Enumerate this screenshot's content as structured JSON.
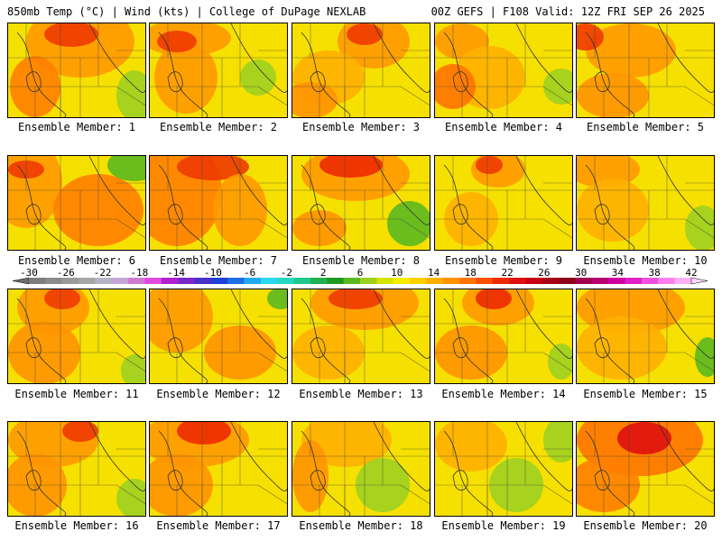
{
  "header": {
    "title_left": "850mb Temp (°C) | Wind (kts) | College of DuPage NEXLAB",
    "title_right": "00Z GEFS | F108 Valid: 12Z FRI SEP 26 2025"
  },
  "panels": [
    {
      "label": "Ensemble Member: 1"
    },
    {
      "label": "Ensemble Member: 2"
    },
    {
      "label": "Ensemble Member: 3"
    },
    {
      "label": "Ensemble Member: 4"
    },
    {
      "label": "Ensemble Member: 5"
    },
    {
      "label": "Ensemble Member: 6"
    },
    {
      "label": "Ensemble Member: 7"
    },
    {
      "label": "Ensemble Member: 8"
    },
    {
      "label": "Ensemble Member: 9"
    },
    {
      "label": "Ensemble Member: 10"
    },
    {
      "label": "Ensemble Member: 11"
    },
    {
      "label": "Ensemble Member: 12"
    },
    {
      "label": "Ensemble Member: 13"
    },
    {
      "label": "Ensemble Member: 14"
    },
    {
      "label": "Ensemble Member: 15"
    },
    {
      "label": "Ensemble Member: 16"
    },
    {
      "label": "Ensemble Member: 17"
    },
    {
      "label": "Ensemble Member: 18"
    },
    {
      "label": "Ensemble Member: 19"
    },
    {
      "label": "Ensemble Member: 20"
    }
  ],
  "colorbar": {
    "unit": "°C",
    "ticks": [
      "-30",
      "-26",
      "-22",
      "-18",
      "-14",
      "-10",
      "-6",
      "-2",
      "2",
      "6",
      "10",
      "14",
      "18",
      "22",
      "26",
      "30",
      "34",
      "38",
      "42"
    ],
    "colors": [
      "#7d7d7d",
      "#8c8c8c",
      "#9a9a9a",
      "#a7a7a7",
      "#b5b5c5",
      "#c6a6d6",
      "#d07ad0",
      "#e04ae0",
      "#b020d0",
      "#7a28c8",
      "#4a30c8",
      "#2040d8",
      "#1e6ee6",
      "#22aaf0",
      "#2ad8f0",
      "#28d8c0",
      "#20c890",
      "#20b050",
      "#1e9a22",
      "#5cb820",
      "#9ed020",
      "#d6e400",
      "#f7ec00",
      "#ffd000",
      "#ffb000",
      "#ff9400",
      "#ff7400",
      "#f85000",
      "#ee2a00",
      "#e01010",
      "#c80014",
      "#a80018",
      "#8c0018",
      "#a00050",
      "#b80070",
      "#d000a0",
      "#e020c8",
      "#f050e0",
      "#ff80ee",
      "#ffb0f6"
    ]
  }
}
